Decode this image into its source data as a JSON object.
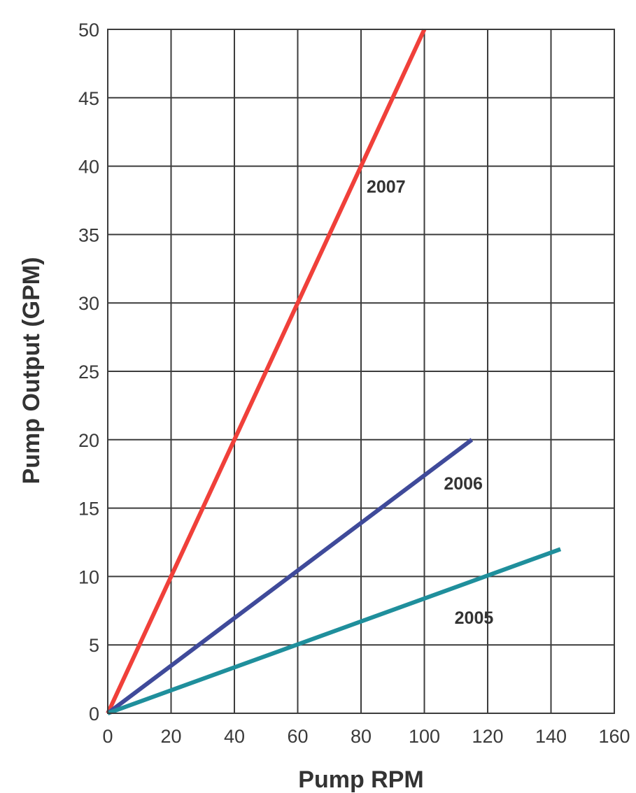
{
  "chart_data": {
    "type": "line",
    "xlabel": "Pump RPM",
    "ylabel": "Pump Output (GPM)",
    "xlim": [
      0,
      160
    ],
    "ylim": [
      0,
      50
    ],
    "x_ticks": [
      0,
      20,
      40,
      60,
      80,
      100,
      120,
      140,
      160
    ],
    "y_ticks": [
      0,
      5,
      10,
      15,
      20,
      25,
      30,
      35,
      40,
      45,
      50
    ],
    "grid": true,
    "series": [
      {
        "name": "2007",
        "color": "#f0403a",
        "x": [
          0,
          100
        ],
        "y": [
          0,
          50
        ]
      },
      {
        "name": "2006",
        "color": "#3f4a9a",
        "x": [
          0,
          115
        ],
        "y": [
          0,
          20
        ]
      },
      {
        "name": "2005",
        "color": "#1f8f9c",
        "x": [
          0,
          143
        ],
        "y": [
          0,
          12
        ]
      }
    ]
  }
}
